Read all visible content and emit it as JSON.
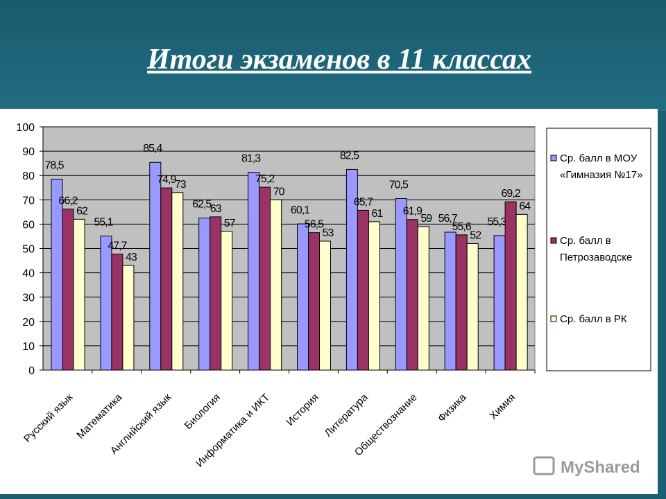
{
  "title": "Итоги экзаменов в 11 классах",
  "watermark": "MyShared",
  "chart_data": {
    "type": "bar",
    "title": "",
    "categories": [
      "Русский язык",
      "Математика",
      "Английский язык",
      "Биология",
      "Информатика и ИКТ",
      "История",
      "Литература",
      "Обществознание",
      "Физика",
      "Химия"
    ],
    "series": [
      {
        "name": "Ср. балл в МОУ «Гимназия №17»",
        "color": "#9999ff",
        "values": [
          78.5,
          55.1,
          85.4,
          62.5,
          81.3,
          60.1,
          82.5,
          70.5,
          56.7,
          55.3
        ],
        "labels": [
          "78,5",
          "55,1",
          "85,4",
          "62,5",
          "81,3",
          "60,1",
          "82,5",
          "70,5",
          "56,7",
          "55,3"
        ]
      },
      {
        "name": "Ср. балл в Петрозаводске",
        "color": "#993366",
        "values": [
          66.2,
          47.7,
          74.9,
          63,
          75.2,
          56.5,
          65.7,
          61.9,
          55.6,
          69.2
        ],
        "labels": [
          "66,2",
          "47,7",
          "74,9",
          "63",
          "75,2",
          "56,5",
          "65,7",
          "61,9",
          "55,6",
          "69,2"
        ]
      },
      {
        "name": "Ср. балл в РК",
        "color": "#ffffcc",
        "values": [
          62,
          43,
          73,
          57,
          70,
          53,
          61,
          59,
          52,
          64
        ],
        "labels": [
          "62",
          "43",
          "73",
          "57",
          "70",
          "53",
          "61",
          "59",
          "52",
          "64"
        ]
      }
    ],
    "legend_lines": [
      [
        "Ср. балл в МОУ",
        "«Гимназия №17»"
      ],
      [
        "Ср. балл в",
        "Петрозаводске"
      ],
      [
        "Ср. балл в РК"
      ]
    ],
    "ylim": [
      0,
      100
    ],
    "yticks": [
      0,
      10,
      20,
      30,
      40,
      50,
      60,
      70,
      80,
      90,
      100
    ],
    "grid": true,
    "plot_background": "#c0c0c0",
    "legend_position": "right"
  }
}
